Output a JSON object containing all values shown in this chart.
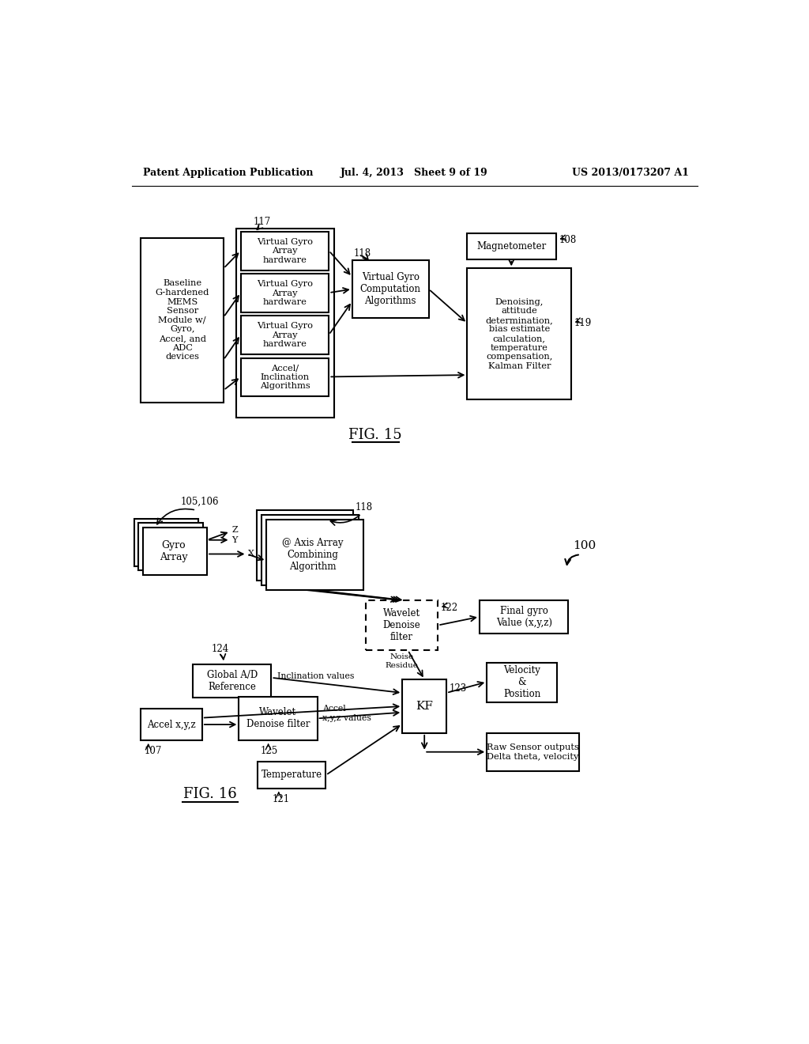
{
  "header_left": "Patent Application Publication",
  "header_mid": "Jul. 4, 2013   Sheet 9 of 19",
  "header_right": "US 2013/0173207 A1",
  "fig15_label": "FIG. 15",
  "fig16_label": "FIG. 16",
  "background": "#ffffff"
}
